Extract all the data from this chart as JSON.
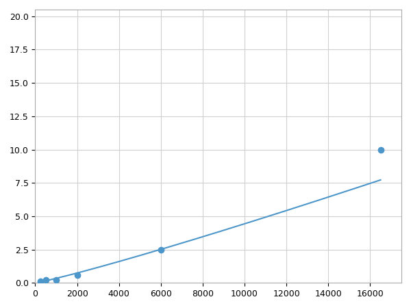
{
  "x_points": [
    250,
    500,
    1000,
    2000,
    6000,
    16500
  ],
  "y_points": [
    0.1,
    0.2,
    0.2,
    0.6,
    2.5,
    10.0
  ],
  "line_color": "#4d96c9",
  "marker_color": "#4d96c9",
  "marker_size": 6,
  "linewidth": 1.5,
  "xlim": [
    0,
    17500
  ],
  "ylim": [
    0,
    20.5
  ],
  "xticks": [
    0,
    2000,
    4000,
    6000,
    8000,
    10000,
    12000,
    14000,
    16000
  ],
  "yticks": [
    0.0,
    2.5,
    5.0,
    7.5,
    10.0,
    12.5,
    15.0,
    17.5,
    20.0
  ],
  "grid_color": "#d0d0d0",
  "background_color": "#ffffff",
  "fig_bg_color": "#ffffff"
}
